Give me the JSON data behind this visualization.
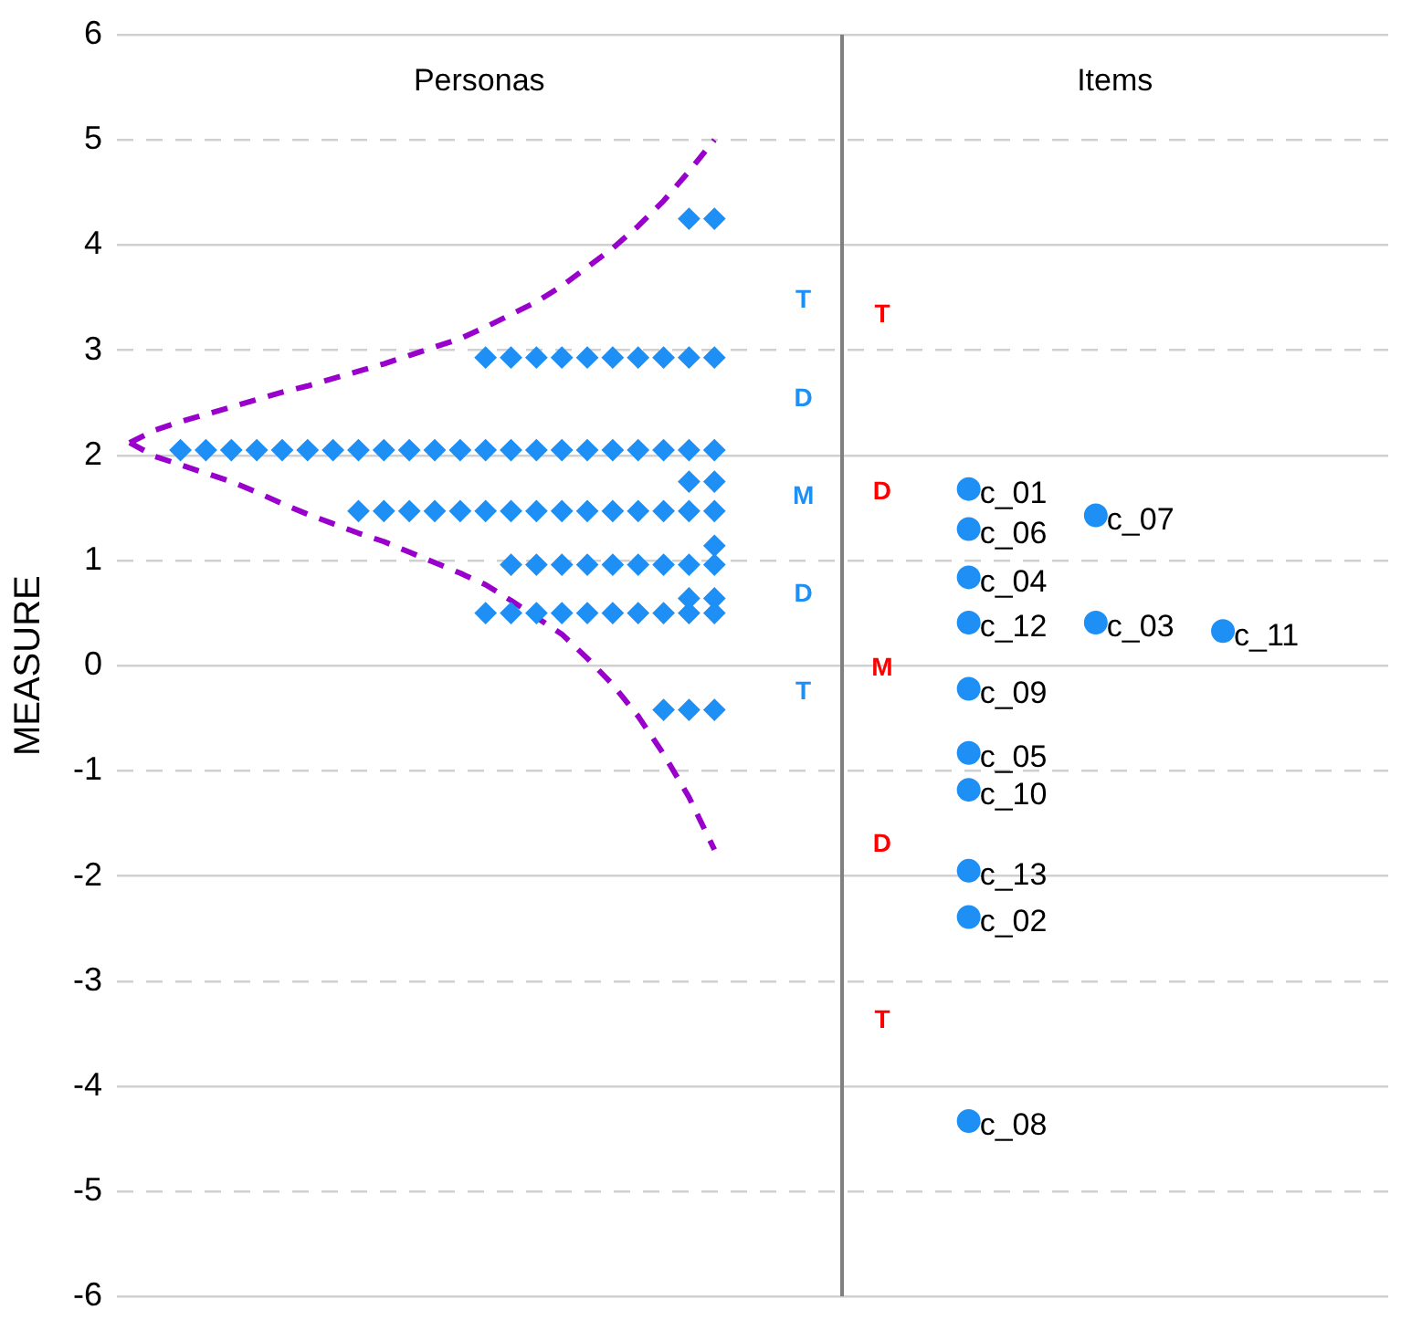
{
  "chart_data": {
    "type": "scatter",
    "ylabel": "MEASURE",
    "categories": [
      null,
      null,
      null,
      null,
      null,
      null,
      null,
      null,
      null,
      null,
      null,
      null,
      null,
      null,
      null,
      null,
      null,
      null,
      null,
      null,
      null,
      null,
      null,
      null,
      null,
      null,
      null,
      null,
      null,
      null,
      null,
      null,
      null,
      null,
      null,
      null,
      null,
      null,
      null,
      null,
      null,
      null,
      null,
      null,
      null,
      null,
      null,
      null,
      null,
      null
    ],
    "ylim": [
      -6,
      6
    ],
    "yticks": [
      -6,
      -5,
      -4,
      -3,
      -2,
      -1,
      0,
      1,
      2,
      3,
      4,
      5,
      6
    ],
    "tick_labels": "y",
    "grid": "y",
    "legend": false,
    "annotations": [
      "Personas",
      "T",
      "D",
      "M",
      "D",
      "T",
      "Items",
      "T",
      "D",
      "M",
      "D",
      "T"
    ],
    "series": [
      {
        "marker": "diamond",
        "color": "#1e8ff5",
        "values": [
          null,
          null,
          null,
          null,
          null,
          null,
          null,
          null,
          null,
          null,
          null,
          null,
          null,
          null,
          null,
          null,
          null,
          null,
          null,
          null,
          null,
          null,
          4.25,
          4.25,
          null,
          null,
          null,
          null,
          null,
          null,
          null,
          null,
          null,
          null,
          null,
          null,
          null,
          null,
          null,
          null,
          null,
          null,
          null,
          null,
          null,
          null,
          null,
          null,
          null,
          null
        ]
      },
      {
        "marker": "diamond",
        "color": "#1e8ff5",
        "values": [
          null,
          null,
          null,
          null,
          null,
          null,
          null,
          null,
          null,
          null,
          null,
          null,
          null,
          null,
          2.93,
          2.93,
          2.93,
          2.93,
          2.93,
          2.93,
          2.93,
          2.93,
          2.93,
          2.93,
          null,
          null,
          null,
          null,
          null,
          null,
          null,
          null,
          null,
          null,
          null,
          null,
          null,
          null,
          null,
          null,
          null,
          null,
          null,
          null,
          null,
          null,
          null,
          null,
          null,
          null
        ]
      },
      {
        "marker": "diamond",
        "color": "#1e8ff5",
        "values": [
          null,
          null,
          2.05,
          2.05,
          2.05,
          2.05,
          2.05,
          2.05,
          2.05,
          2.05,
          2.05,
          2.05,
          2.05,
          2.05,
          2.05,
          2.05,
          2.05,
          2.05,
          2.05,
          2.05,
          2.05,
          2.05,
          2.05,
          2.05,
          null,
          null,
          null,
          null,
          null,
          null,
          null,
          null,
          null,
          null,
          null,
          null,
          null,
          null,
          null,
          null,
          null,
          null,
          null,
          null,
          null,
          null,
          null,
          null,
          null,
          null
        ]
      },
      {
        "marker": "diamond",
        "color": "#1e8ff5",
        "values": [
          null,
          null,
          null,
          null,
          null,
          null,
          null,
          null,
          null,
          null,
          null,
          null,
          null,
          null,
          null,
          null,
          null,
          null,
          null,
          null,
          null,
          null,
          1.75,
          1.75,
          null,
          null,
          null,
          null,
          null,
          null,
          null,
          null,
          null,
          null,
          null,
          null,
          null,
          null,
          null,
          null,
          null,
          null,
          null,
          null,
          null,
          null,
          null,
          null,
          null,
          null
        ]
      },
      {
        "marker": "diamond",
        "color": "#1e8ff5",
        "values": [
          null,
          null,
          null,
          null,
          null,
          null,
          null,
          null,
          null,
          1.47,
          1.47,
          1.47,
          1.47,
          1.47,
          1.47,
          1.47,
          1.47,
          1.47,
          1.47,
          1.47,
          1.47,
          1.47,
          1.47,
          1.47,
          null,
          null,
          null,
          null,
          null,
          null,
          null,
          null,
          null,
          null,
          null,
          null,
          null,
          null,
          null,
          null,
          null,
          null,
          null,
          null,
          null,
          null,
          null,
          null,
          null,
          null
        ]
      },
      {
        "marker": "diamond",
        "color": "#1e8ff5",
        "values": [
          null,
          null,
          null,
          null,
          null,
          null,
          null,
          null,
          null,
          null,
          null,
          null,
          null,
          null,
          null,
          null,
          null,
          null,
          null,
          null,
          null,
          null,
          null,
          1.14,
          null,
          null,
          null,
          null,
          null,
          null,
          null,
          null,
          null,
          null,
          null,
          null,
          null,
          null,
          null,
          null,
          null,
          null,
          null,
          null,
          null,
          null,
          null,
          null,
          null,
          null
        ]
      },
      {
        "marker": "diamond",
        "color": "#1e8ff5",
        "values": [
          null,
          null,
          null,
          null,
          null,
          null,
          null,
          null,
          null,
          null,
          null,
          null,
          null,
          null,
          null,
          0.96,
          0.96,
          0.96,
          0.96,
          0.96,
          0.96,
          0.96,
          0.96,
          0.96,
          null,
          null,
          null,
          null,
          null,
          null,
          null,
          null,
          null,
          null,
          null,
          null,
          null,
          null,
          null,
          null,
          null,
          null,
          null,
          null,
          null,
          null,
          null,
          null,
          null,
          null
        ]
      },
      {
        "marker": "diamond",
        "color": "#1e8ff5",
        "values": [
          null,
          null,
          null,
          null,
          null,
          null,
          null,
          null,
          null,
          null,
          null,
          null,
          null,
          null,
          null,
          null,
          null,
          null,
          null,
          null,
          null,
          null,
          0.64,
          0.64,
          null,
          null,
          null,
          null,
          null,
          null,
          null,
          null,
          null,
          null,
          null,
          null,
          null,
          null,
          null,
          null,
          null,
          null,
          null,
          null,
          null,
          null,
          null,
          null,
          null,
          null
        ]
      },
      {
        "marker": "diamond",
        "color": "#1e8ff5",
        "values": [
          null,
          null,
          null,
          null,
          null,
          null,
          null,
          null,
          null,
          null,
          null,
          null,
          null,
          null,
          0.5,
          0.5,
          0.5,
          0.5,
          0.5,
          0.5,
          0.5,
          0.5,
          0.5,
          0.5,
          null,
          null,
          null,
          null,
          null,
          null,
          null,
          null,
          null,
          null,
          null,
          null,
          null,
          null,
          null,
          null,
          null,
          null,
          null,
          null,
          null,
          null,
          null,
          null,
          null,
          null
        ]
      },
      {
        "marker": "diamond",
        "color": "#1e8ff5",
        "values": [
          null,
          null,
          null,
          null,
          null,
          null,
          null,
          null,
          null,
          null,
          null,
          null,
          null,
          null,
          null,
          null,
          null,
          null,
          null,
          null,
          null,
          -0.42,
          -0.42,
          -0.42,
          null,
          null,
          null,
          null,
          null,
          null,
          null,
          null,
          null,
          null,
          null,
          null,
          null,
          null,
          null,
          null,
          null,
          null,
          null,
          null,
          null,
          null,
          null,
          null,
          null,
          null
        ]
      },
      {
        "type": "line",
        "marker": "none",
        "line_style": "dashed",
        "color": "#9900cc",
        "values": [
          2.12,
          2.24,
          2.32,
          2.39,
          2.46,
          2.53,
          2.6,
          2.66,
          2.73,
          2.8,
          2.87,
          2.95,
          3.03,
          3.11,
          3.22,
          3.34,
          3.46,
          3.61,
          3.79,
          3.97,
          4.18,
          4.42,
          4.7,
          5.0,
          null,
          null,
          null,
          null,
          null,
          null,
          null,
          null,
          null,
          null,
          null,
          null,
          null,
          null,
          null,
          null,
          null,
          null,
          null,
          null,
          null,
          null,
          null,
          null,
          null,
          null
        ]
      },
      {
        "type": "line",
        "marker": "none",
        "line_style": "dashed",
        "color": "#9900cc",
        "values": [
          2.12,
          1.99,
          1.91,
          1.83,
          1.75,
          1.65,
          1.54,
          1.44,
          1.35,
          1.26,
          1.18,
          1.08,
          0.98,
          0.88,
          0.77,
          0.62,
          0.46,
          0.3,
          0.07,
          -0.18,
          -0.48,
          -0.84,
          -1.25,
          -1.75,
          null,
          null,
          null,
          null,
          null,
          null,
          null,
          null,
          null,
          null,
          null,
          null,
          null,
          null,
          null,
          null,
          null,
          null,
          null,
          null,
          null,
          null,
          null,
          null,
          null,
          null
        ]
      },
      {
        "name": "c_01",
        "marker": "circle",
        "color": "#1e8ff5",
        "values": [
          null,
          null,
          null,
          null,
          null,
          null,
          null,
          null,
          null,
          null,
          null,
          null,
          null,
          null,
          null,
          null,
          null,
          null,
          null,
          null,
          null,
          null,
          null,
          null,
          null,
          null,
          null,
          null,
          null,
          null,
          null,
          null,
          null,
          1.68,
          null,
          null,
          null,
          null,
          null,
          null,
          null,
          null,
          null,
          null,
          null,
          null,
          null,
          null,
          null,
          null
        ]
      },
      {
        "name": "c_06",
        "marker": "circle",
        "color": "#1e8ff5",
        "values": [
          null,
          null,
          null,
          null,
          null,
          null,
          null,
          null,
          null,
          null,
          null,
          null,
          null,
          null,
          null,
          null,
          null,
          null,
          null,
          null,
          null,
          null,
          null,
          null,
          null,
          null,
          null,
          null,
          null,
          null,
          null,
          null,
          null,
          1.3,
          null,
          null,
          null,
          null,
          null,
          null,
          null,
          null,
          null,
          null,
          null,
          null,
          null,
          null,
          null,
          null
        ]
      },
      {
        "name": "c_07",
        "marker": "circle",
        "color": "#1e8ff5",
        "values": [
          null,
          null,
          null,
          null,
          null,
          null,
          null,
          null,
          null,
          null,
          null,
          null,
          null,
          null,
          null,
          null,
          null,
          null,
          null,
          null,
          null,
          null,
          null,
          null,
          null,
          null,
          null,
          null,
          null,
          null,
          null,
          null,
          null,
          null,
          null,
          null,
          null,
          null,
          1.43,
          null,
          null,
          null,
          null,
          null,
          null,
          null,
          null,
          null,
          null,
          null
        ]
      },
      {
        "name": "c_04",
        "marker": "circle",
        "color": "#1e8ff5",
        "values": [
          null,
          null,
          null,
          null,
          null,
          null,
          null,
          null,
          null,
          null,
          null,
          null,
          null,
          null,
          null,
          null,
          null,
          null,
          null,
          null,
          null,
          null,
          null,
          null,
          null,
          null,
          null,
          null,
          null,
          null,
          null,
          null,
          null,
          0.84,
          null,
          null,
          null,
          null,
          null,
          null,
          null,
          null,
          null,
          null,
          null,
          null,
          null,
          null,
          null,
          null
        ]
      },
      {
        "name": "c_12",
        "marker": "circle",
        "color": "#1e8ff5",
        "values": [
          null,
          null,
          null,
          null,
          null,
          null,
          null,
          null,
          null,
          null,
          null,
          null,
          null,
          null,
          null,
          null,
          null,
          null,
          null,
          null,
          null,
          null,
          null,
          null,
          null,
          null,
          null,
          null,
          null,
          null,
          null,
          null,
          null,
          0.41,
          null,
          null,
          null,
          null,
          null,
          null,
          null,
          null,
          null,
          null,
          null,
          null,
          null,
          null,
          null,
          null
        ]
      },
      {
        "name": "c_03",
        "marker": "circle",
        "color": "#1e8ff5",
        "values": [
          null,
          null,
          null,
          null,
          null,
          null,
          null,
          null,
          null,
          null,
          null,
          null,
          null,
          null,
          null,
          null,
          null,
          null,
          null,
          null,
          null,
          null,
          null,
          null,
          null,
          null,
          null,
          null,
          null,
          null,
          null,
          null,
          null,
          null,
          null,
          null,
          null,
          null,
          0.41,
          null,
          null,
          null,
          null,
          null,
          null,
          null,
          null,
          null,
          null,
          null
        ]
      },
      {
        "name": "c_11",
        "marker": "circle",
        "color": "#1e8ff5",
        "values": [
          null,
          null,
          null,
          null,
          null,
          null,
          null,
          null,
          null,
          null,
          null,
          null,
          null,
          null,
          null,
          null,
          null,
          null,
          null,
          null,
          null,
          null,
          null,
          null,
          null,
          null,
          null,
          null,
          null,
          null,
          null,
          null,
          null,
          null,
          null,
          null,
          null,
          null,
          null,
          null,
          null,
          null,
          null,
          0.33,
          null,
          null,
          null,
          null,
          null,
          null
        ]
      },
      {
        "name": "c_09",
        "marker": "circle",
        "color": "#1e8ff5",
        "values": [
          null,
          null,
          null,
          null,
          null,
          null,
          null,
          null,
          null,
          null,
          null,
          null,
          null,
          null,
          null,
          null,
          null,
          null,
          null,
          null,
          null,
          null,
          null,
          null,
          null,
          null,
          null,
          null,
          null,
          null,
          null,
          null,
          null,
          -0.22,
          null,
          null,
          null,
          null,
          null,
          null,
          null,
          null,
          null,
          null,
          null,
          null,
          null,
          null,
          null,
          null
        ]
      },
      {
        "name": "c_05",
        "marker": "circle",
        "color": "#1e8ff5",
        "values": [
          null,
          null,
          null,
          null,
          null,
          null,
          null,
          null,
          null,
          null,
          null,
          null,
          null,
          null,
          null,
          null,
          null,
          null,
          null,
          null,
          null,
          null,
          null,
          null,
          null,
          null,
          null,
          null,
          null,
          null,
          null,
          null,
          null,
          -0.83,
          null,
          null,
          null,
          null,
          null,
          null,
          null,
          null,
          null,
          null,
          null,
          null,
          null,
          null,
          null,
          null
        ]
      },
      {
        "name": "c_10",
        "marker": "circle",
        "color": "#1e8ff5",
        "values": [
          null,
          null,
          null,
          null,
          null,
          null,
          null,
          null,
          null,
          null,
          null,
          null,
          null,
          null,
          null,
          null,
          null,
          null,
          null,
          null,
          null,
          null,
          null,
          null,
          null,
          null,
          null,
          null,
          null,
          null,
          null,
          null,
          null,
          -1.18,
          null,
          null,
          null,
          null,
          null,
          null,
          null,
          null,
          null,
          null,
          null,
          null,
          null,
          null,
          null,
          null
        ]
      },
      {
        "name": "c_13",
        "marker": "circle",
        "color": "#1e8ff5",
        "values": [
          null,
          null,
          null,
          null,
          null,
          null,
          null,
          null,
          null,
          null,
          null,
          null,
          null,
          null,
          null,
          null,
          null,
          null,
          null,
          null,
          null,
          null,
          null,
          null,
          null,
          null,
          null,
          null,
          null,
          null,
          null,
          null,
          null,
          -1.95,
          null,
          null,
          null,
          null,
          null,
          null,
          null,
          null,
          null,
          null,
          null,
          null,
          null,
          null,
          null,
          null
        ]
      },
      {
        "name": "c_02",
        "marker": "circle",
        "color": "#1e8ff5",
        "values": [
          null,
          null,
          null,
          null,
          null,
          null,
          null,
          null,
          null,
          null,
          null,
          null,
          null,
          null,
          null,
          null,
          null,
          null,
          null,
          null,
          null,
          null,
          null,
          null,
          null,
          null,
          null,
          null,
          null,
          null,
          null,
          null,
          null,
          -2.39,
          null,
          null,
          null,
          null,
          null,
          null,
          null,
          null,
          null,
          null,
          null,
          null,
          null,
          null,
          null,
          null
        ]
      },
      {
        "name": "c_08",
        "marker": "circle",
        "color": "#1e8ff5",
        "values": [
          null,
          null,
          null,
          null,
          null,
          null,
          null,
          null,
          null,
          null,
          null,
          null,
          null,
          null,
          null,
          null,
          null,
          null,
          null,
          null,
          null,
          null,
          null,
          null,
          null,
          null,
          null,
          null,
          null,
          null,
          null,
          null,
          null,
          -4.33,
          null,
          null,
          null,
          null,
          null,
          null,
          null,
          null,
          null,
          null,
          null,
          null,
          null,
          null,
          null,
          null
        ]
      }
    ]
  }
}
